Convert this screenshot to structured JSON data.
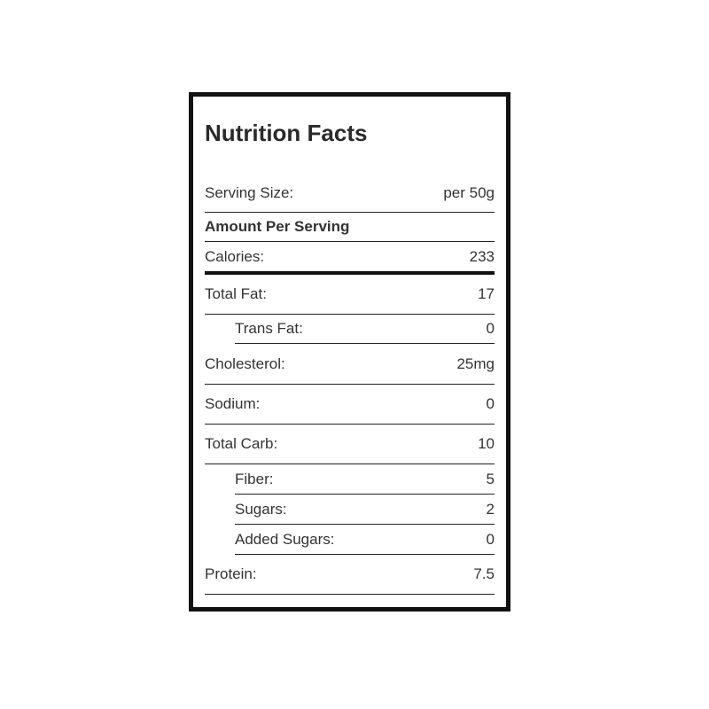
{
  "title": "Nutrition Facts",
  "serving": {
    "label": "Serving Size:",
    "value": "per 50g"
  },
  "amount_header": "Amount Per Serving",
  "calories": {
    "label": "Calories:",
    "value": "233"
  },
  "nutrients": [
    {
      "label": "Total Fat:",
      "value": "17"
    },
    {
      "label": "Trans Fat:",
      "value": "0"
    },
    {
      "label": "Cholesterol:",
      "value": "25mg"
    },
    {
      "label": "Sodium:",
      "value": "0"
    },
    {
      "label": "Total Carb:",
      "value": "10"
    },
    {
      "label": "Fiber:",
      "value": "5"
    },
    {
      "label": "Sugars:",
      "value": "2"
    },
    {
      "label": "Added Sugars:",
      "value": "0"
    },
    {
      "label": "Protein:",
      "value": "7.5"
    }
  ]
}
